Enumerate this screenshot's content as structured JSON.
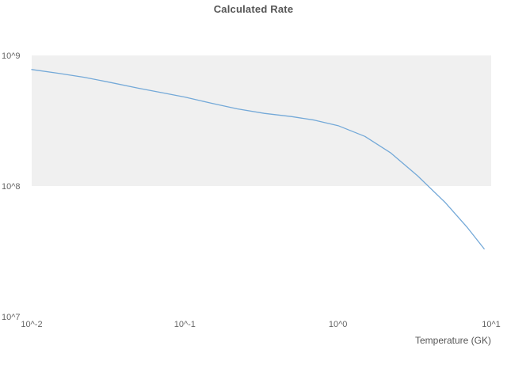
{
  "chart_data": {
    "type": "line",
    "title": "Calculated Rate",
    "xlabel": "Temperature (GK)",
    "ylabel": "",
    "xscale": "log",
    "yscale": "log",
    "xlim": [
      0.01,
      10
    ],
    "ylim": [
      10000000.0,
      1000000000.0
    ],
    "grid": "band",
    "legend": "none",
    "x": [
      0.01,
      0.015,
      0.022,
      0.033,
      0.05,
      0.07,
      0.1,
      0.15,
      0.22,
      0.33,
      0.5,
      0.7,
      1.0,
      1.5,
      2.2,
      3.3,
      5.0,
      7.0,
      9.0
    ],
    "y": [
      780000000.0,
      730000000.0,
      680000000.0,
      620000000.0,
      560000000.0,
      520000000.0,
      480000000.0,
      430000000.0,
      390000000.0,
      360000000.0,
      340000000.0,
      320000000.0,
      290000000.0,
      240000000.0,
      180000000.0,
      120000000.0,
      75000000.0,
      48000000.0,
      33000000.0
    ],
    "x_ticks": [
      {
        "value": 0.01,
        "label": "10^-2"
      },
      {
        "value": 0.1,
        "label": "10^-1"
      },
      {
        "value": 1,
        "label": "10^0"
      },
      {
        "value": 10,
        "label": "10^1"
      }
    ],
    "y_ticks": [
      {
        "value": 1000000000.0,
        "label": "10^9"
      },
      {
        "value": 100000000.0,
        "label": "10^8"
      },
      {
        "value": 10000000.0,
        "label": "10^7"
      }
    ],
    "band": {
      "from": 100000000.0,
      "to": 1000000000.0,
      "color": "#f0f0f0"
    },
    "line_color": "#74a9d8",
    "line_width": 1.3
  }
}
